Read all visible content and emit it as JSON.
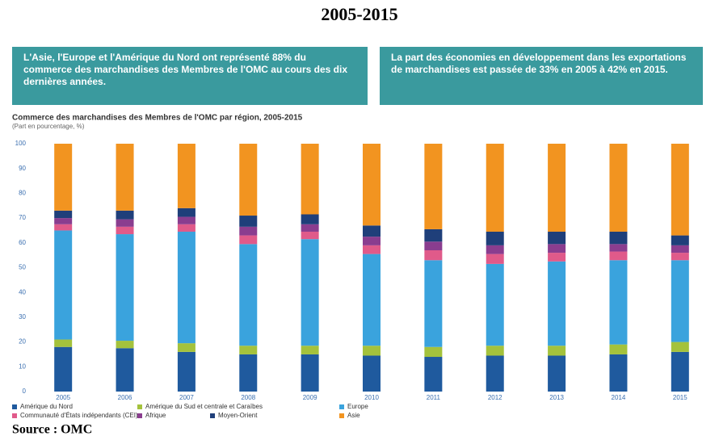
{
  "heading": "2005-2015",
  "chart_data": {
    "type": "bar",
    "stacked": true,
    "annotations": [
      "L'Asie, l'Europe et l'Amérique du Nord ont représenté 88% du commerce des marchandises des Membres de l'OMC au cours des dix dernières années.",
      "La part des économies en développement dans les exportations de marchandises est passée de 33% en 2005 à 42% en 2015."
    ],
    "title": "Commerce des marchandises des Membres de l'OMC par région, 2005-2015",
    "subtitle": "(Part en pourcentage, %)",
    "categories": [
      "2005",
      "2006",
      "2007",
      "2008",
      "2009",
      "2010",
      "2011",
      "2012",
      "2013",
      "2014",
      "2015"
    ],
    "series": [
      {
        "name": "Amérique du Nord",
        "color": "#1f5a9e",
        "values": [
          18,
          17.5,
          16,
          15,
          15,
          14.5,
          14,
          14.5,
          14.5,
          15,
          16
        ]
      },
      {
        "name": "Amérique du Sud et centrale et Caraïbes",
        "color": "#a4c23c",
        "values": [
          3,
          3,
          3.5,
          3.5,
          3.5,
          4,
          4,
          4,
          4,
          4,
          4
        ]
      },
      {
        "name": "Europe",
        "color": "#3aa3dd",
        "values": [
          44,
          43,
          45,
          41,
          43,
          37,
          35,
          33,
          34,
          34,
          33
        ]
      },
      {
        "name": "Communauté d'États indépendants (CEI)",
        "color": "#e05a8a",
        "values": [
          2.5,
          3,
          3,
          3.5,
          3,
          3.5,
          4,
          4,
          3.5,
          3.5,
          3
        ]
      },
      {
        "name": "Afrique",
        "color": "#8a3d8f",
        "values": [
          2.5,
          3,
          3,
          3.5,
          3,
          3.5,
          3.5,
          3.5,
          3.5,
          3,
          3
        ]
      },
      {
        "name": "Moyen-Orient",
        "color": "#1f3f7a",
        "values": [
          3,
          3.5,
          3.5,
          4.5,
          4,
          4.5,
          5,
          5.5,
          5,
          5,
          4
        ]
      },
      {
        "name": "Asie",
        "color": "#f29420",
        "values": [
          27,
          27,
          26,
          29,
          28.5,
          33,
          34.5,
          35.5,
          35.5,
          35.5,
          37
        ]
      }
    ],
    "ylim": [
      0,
      100
    ],
    "yticks": [
      0,
      10,
      20,
      30,
      40,
      50,
      60,
      70,
      80,
      90,
      100
    ],
    "grid": false
  },
  "source": "Source : OMC"
}
